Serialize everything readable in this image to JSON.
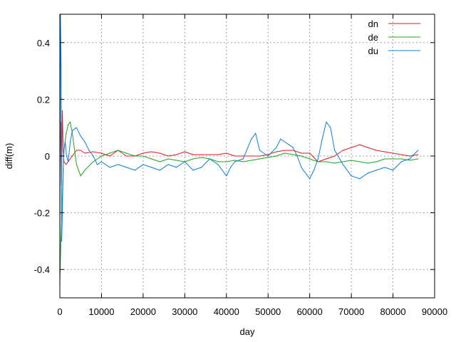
{
  "chart_data": {
    "type": "line",
    "title": "",
    "xlabel": "day",
    "ylabel": "diff(m)",
    "xlim": [
      0,
      90000
    ],
    "ylim": [
      -0.5,
      0.5
    ],
    "xticks": [
      0,
      10000,
      20000,
      30000,
      40000,
      50000,
      60000,
      70000,
      80000,
      90000
    ],
    "xtick_labels": [
      "0",
      "10000",
      "20000",
      "30000",
      "40000",
      "50000",
      "60000",
      "70000",
      "80000",
      "90000"
    ],
    "yticks": [
      -0.4,
      -0.2,
      0,
      0.2,
      0.4
    ],
    "ytick_labels": [
      "-0.4",
      "-0.2",
      "0",
      "0.2",
      "0.4"
    ],
    "grid": true,
    "legend_position": "top-right",
    "series": [
      {
        "name": "dn",
        "color": "#e41a1c",
        "x": [
          0,
          200,
          400,
          600,
          800,
          1000,
          1500,
          2000,
          3000,
          4000,
          5000,
          6000,
          8000,
          10000,
          12000,
          14000,
          16000,
          18000,
          20000,
          22000,
          24000,
          26000,
          28000,
          30000,
          32000,
          34000,
          36000,
          38000,
          40000,
          42000,
          44000,
          46000,
          48000,
          50000,
          52000,
          54000,
          56000,
          58000,
          60000,
          62000,
          64000,
          66000,
          68000,
          70000,
          72000,
          74000,
          76000,
          78000,
          80000,
          82000,
          84000,
          86000
        ],
        "y": [
          -0.05,
          0.12,
          -0.1,
          0.16,
          0.02,
          -0.02,
          -0.03,
          -0.02,
          0.0,
          0.02,
          0.02,
          0.01,
          0.015,
          0.01,
          0.0,
          0.02,
          0.0,
          0.0,
          0.01,
          0.015,
          0.01,
          0.0,
          0.005,
          0.015,
          0.005,
          0.005,
          0.005,
          0.005,
          0.01,
          0.0,
          0.0,
          0.0,
          0.0,
          0.005,
          0.015,
          0.02,
          0.02,
          0.01,
          0.01,
          -0.02,
          -0.01,
          0.0,
          0.02,
          0.03,
          0.04,
          0.03,
          0.02,
          0.015,
          0.01,
          0.005,
          0.0,
          0.005
        ]
      },
      {
        "name": "de",
        "color": "#1ca51c",
        "x": [
          0,
          200,
          400,
          600,
          800,
          1000,
          1500,
          2000,
          2500,
          3000,
          4000,
          5000,
          6000,
          8000,
          10000,
          12000,
          14000,
          16000,
          18000,
          20000,
          22000,
          24000,
          26000,
          28000,
          30000,
          32000,
          34000,
          36000,
          38000,
          40000,
          42000,
          44000,
          46000,
          48000,
          50000,
          52000,
          54000,
          56000,
          58000,
          60000,
          62000,
          64000,
          66000,
          68000,
          70000,
          72000,
          74000,
          76000,
          78000,
          80000,
          82000,
          84000,
          86000
        ],
        "y": [
          -0.45,
          -0.32,
          -0.25,
          -0.15,
          -0.05,
          0.02,
          0.08,
          0.11,
          0.12,
          0.08,
          -0.03,
          -0.07,
          -0.05,
          -0.02,
          0.0,
          0.01,
          0.02,
          0.01,
          0.0,
          0.0,
          -0.01,
          -0.02,
          -0.01,
          -0.015,
          -0.02,
          -0.01,
          -0.005,
          -0.01,
          -0.02,
          -0.02,
          -0.015,
          -0.02,
          -0.015,
          -0.01,
          -0.005,
          0.0,
          0.01,
          0.005,
          0.0,
          -0.01,
          -0.02,
          -0.02,
          -0.025,
          -0.02,
          -0.015,
          -0.02,
          -0.025,
          -0.02,
          -0.01,
          -0.01,
          -0.01,
          -0.015,
          -0.01
        ]
      },
      {
        "name": "du",
        "color": "#0a7fdc",
        "x": [
          0,
          150,
          300,
          450,
          600,
          800,
          1000,
          1300,
          1600,
          2000,
          2500,
          3000,
          4000,
          5000,
          6000,
          7000,
          8000,
          9000,
          10000,
          12000,
          14000,
          16000,
          18000,
          20000,
          22000,
          24000,
          26000,
          28000,
          30000,
          32000,
          34000,
          36000,
          38000,
          40000,
          41000,
          42000,
          44000,
          46000,
          47000,
          48000,
          50000,
          52000,
          53000,
          54000,
          56000,
          57000,
          58000,
          60000,
          61000,
          62000,
          63000,
          64000,
          65000,
          66000,
          68000,
          70000,
          72000,
          74000,
          76000,
          78000,
          80000,
          82000,
          84000,
          86000
        ],
        "y": [
          -0.45,
          0.5,
          0.32,
          -0.3,
          -0.2,
          -0.05,
          0.02,
          0.05,
          0.0,
          -0.02,
          0.05,
          0.09,
          0.1,
          0.07,
          0.05,
          0.02,
          0.0,
          -0.03,
          -0.02,
          -0.04,
          -0.03,
          -0.04,
          -0.05,
          -0.03,
          -0.04,
          -0.05,
          -0.03,
          -0.04,
          -0.02,
          -0.05,
          -0.04,
          -0.01,
          -0.03,
          -0.07,
          -0.04,
          -0.02,
          -0.01,
          0.06,
          0.08,
          0.02,
          0.0,
          0.03,
          0.06,
          0.05,
          0.03,
          0.0,
          -0.04,
          -0.08,
          -0.05,
          -0.01,
          0.06,
          0.12,
          0.1,
          0.02,
          -0.03,
          -0.07,
          -0.08,
          -0.06,
          -0.05,
          -0.04,
          -0.05,
          -0.02,
          -0.01,
          0.02
        ]
      }
    ]
  }
}
